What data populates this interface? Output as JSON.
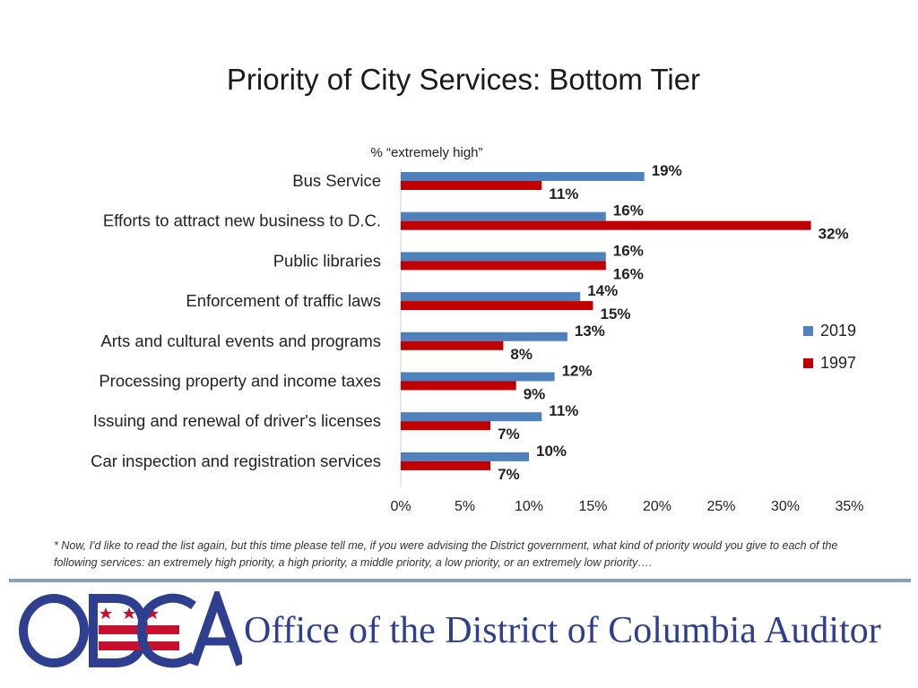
{
  "chart_data": {
    "type": "bar",
    "orientation": "horizontal",
    "title": "Priority of City Services: Bottom Tier",
    "subtitle": "% “extremely high”",
    "categories": [
      "Bus Service",
      "Efforts to attract new business to D.C.",
      "Public libraries",
      "Enforcement of traffic laws",
      "Arts and cultural events and programs",
      "Processing property and income taxes",
      "Issuing and renewal of driver's licenses",
      "Car inspection and registration services"
    ],
    "series": [
      {
        "name": "2019",
        "color": "#4f81bd",
        "values": [
          19,
          16,
          16,
          14,
          13,
          12,
          11,
          10
        ]
      },
      {
        "name": "1997",
        "color": "#c00000",
        "values": [
          11,
          32,
          16,
          15,
          8,
          9,
          7,
          7
        ]
      }
    ],
    "xlim": [
      0,
      35
    ],
    "xticks": [
      0,
      5,
      10,
      15,
      20,
      25,
      30,
      35
    ],
    "xtick_labels": [
      "0%",
      "5%",
      "10%",
      "15%",
      "20%",
      "25%",
      "30%",
      "35%"
    ],
    "value_suffix": "%",
    "grid": false,
    "legend": "right"
  },
  "footnote": "* Now, I'd like to read the list again, but this time please tell me, if you were advising the District government, what kind of priority would you give to each of the following services: an extremely high priority, a high priority, a middle priority, a low priority, or an extremely low priority….",
  "branding": {
    "logo_letters": "ODCA",
    "org_name": "Office of the District of Columbia Auditor",
    "logo_blue": "#2e3f8f",
    "logo_red": "#c8102e"
  }
}
